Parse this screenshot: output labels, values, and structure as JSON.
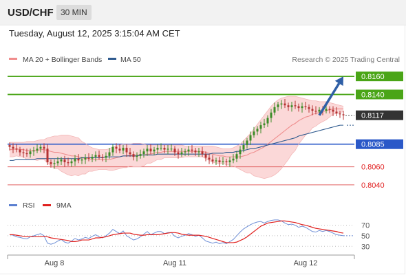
{
  "header": {
    "symbol": "USD/CHF",
    "timeframe": "30 MIN",
    "timestamp": "Tuesday, August 12, 2025 3:15:04 AM CET"
  },
  "legend": {
    "items": [
      {
        "label": "MA 20 + Bollinger Bands",
        "color": "#f08c8c"
      },
      {
        "label": "MA 50",
        "color": "#2e5a8e"
      }
    ],
    "source": "Research © 2025 Trading Central"
  },
  "rsi_legend": {
    "items": [
      {
        "label": "RSI",
        "color": "#5b7fd0"
      },
      {
        "label": "9MA",
        "color": "#e0201e"
      }
    ]
  },
  "colors": {
    "up": "#3c8c28",
    "down": "#b43232",
    "green_level": "#4aa517",
    "blue_level": "#2a58c8",
    "red_level": "#e06060",
    "bands": "#fbd8d8",
    "arrow": "#2f5fa6"
  },
  "chart_data": [
    {
      "type": "candlestick",
      "title": "USD/CHF",
      "ylim": [
        0.803,
        0.817
      ],
      "x_tick_labels": [
        {
          "label": "Aug 8",
          "index": 13
        },
        {
          "label": "Aug 11",
          "index": 48
        },
        {
          "label": "Aug 12",
          "index": 86
        }
      ],
      "last_price": 0.8117,
      "levels": [
        {
          "value": 0.816,
          "label": "0.8160",
          "kind": "resistance",
          "color": "#4aa517"
        },
        {
          "value": 0.814,
          "label": "0.8140",
          "kind": "resistance",
          "color": "#4aa517"
        },
        {
          "value": 0.8085,
          "label": "0.8085",
          "kind": "pivot",
          "color": "#2a58c8"
        },
        {
          "value": 0.806,
          "label": "0.8060",
          "kind": "support",
          "color": "#e06060"
        },
        {
          "value": 0.804,
          "label": "0.8040",
          "kind": "support",
          "color": "#e06060"
        }
      ],
      "target_arrow": {
        "from_index": 90,
        "from_value": 0.8117,
        "to_index": 97,
        "to_value": 0.816
      },
      "close": [
        0.8082,
        0.808,
        0.8079,
        0.8076,
        0.8075,
        0.8074,
        0.8077,
        0.8078,
        0.808,
        0.8082,
        0.808,
        0.8065,
        0.8063,
        0.8064,
        0.8066,
        0.8068,
        0.8065,
        0.8064,
        0.8066,
        0.8069,
        0.8067,
        0.8068,
        0.807,
        0.8069,
        0.8071,
        0.8073,
        0.8071,
        0.807,
        0.8072,
        0.8076,
        0.8082,
        0.808,
        0.8078,
        0.8081,
        0.8076,
        0.8074,
        0.8071,
        0.8072,
        0.8074,
        0.8077,
        0.808,
        0.8077,
        0.8079,
        0.8081,
        0.8081,
        0.8079,
        0.808,
        0.808,
        0.8076,
        0.8074,
        0.8076,
        0.8077,
        0.8079,
        0.8078,
        0.8076,
        0.8077,
        0.8074,
        0.807,
        0.8068,
        0.8066,
        0.8067,
        0.8065,
        0.8066,
        0.8065,
        0.8067,
        0.8069,
        0.8074,
        0.8079,
        0.8084,
        0.8089,
        0.8095,
        0.8099,
        0.8102,
        0.8106,
        0.8108,
        0.8114,
        0.812,
        0.8126,
        0.8129,
        0.813,
        0.8128,
        0.8126,
        0.8128,
        0.8127,
        0.8125,
        0.8127,
        0.8126,
        0.8124,
        0.8122,
        0.8121,
        0.8123,
        0.8122,
        0.8124,
        0.8123,
        0.8121,
        0.8119,
        0.8118,
        0.8117
      ],
      "ma20": [
        0.8079,
        0.8079,
        0.808,
        0.8079,
        0.8079,
        0.8078,
        0.8078,
        0.8078,
        0.8078,
        0.8079,
        0.8079,
        0.8078,
        0.8077,
        0.8076,
        0.8076,
        0.8075,
        0.8074,
        0.8073,
        0.8072,
        0.8072,
        0.8071,
        0.807,
        0.8069,
        0.8069,
        0.8068,
        0.8068,
        0.8068,
        0.8068,
        0.8068,
        0.8068,
        0.8069,
        0.807,
        0.8071,
        0.8072,
        0.8072,
        0.8073,
        0.8073,
        0.8073,
        0.8073,
        0.8073,
        0.8074,
        0.8074,
        0.8075,
        0.8076,
        0.8076,
        0.8077,
        0.8077,
        0.8077,
        0.8077,
        0.8077,
        0.8077,
        0.8077,
        0.8077,
        0.8077,
        0.8077,
        0.8077,
        0.8077,
        0.8076,
        0.8075,
        0.8074,
        0.8073,
        0.8072,
        0.8072,
        0.8071,
        0.8071,
        0.8071,
        0.8071,
        0.8071,
        0.8072,
        0.8073,
        0.8075,
        0.8076,
        0.8078,
        0.808,
        0.8082,
        0.8085,
        0.8088,
        0.8091,
        0.8094,
        0.8097,
        0.81,
        0.8103,
        0.8106,
        0.8108,
        0.8111,
        0.8113,
        0.8115,
        0.8116,
        0.8118,
        0.8119,
        0.812,
        0.8121,
        0.8122,
        0.8123,
        0.8124,
        0.8124,
        0.8124,
        0.8124
      ],
      "bb_upper": [
        0.8087,
        0.8087,
        0.8087,
        0.8087,
        0.8087,
        0.8088,
        0.8088,
        0.8088,
        0.8089,
        0.809,
        0.809,
        0.8092,
        0.8093,
        0.8094,
        0.8094,
        0.8095,
        0.8095,
        0.8095,
        0.8094,
        0.8093,
        0.8092,
        0.8088,
        0.8086,
        0.8083,
        0.8081,
        0.808,
        0.8079,
        0.8079,
        0.8079,
        0.808,
        0.8082,
        0.8083,
        0.8084,
        0.8085,
        0.8085,
        0.8085,
        0.8086,
        0.8086,
        0.8086,
        0.8085,
        0.8084,
        0.8084,
        0.8084,
        0.8084,
        0.8084,
        0.8084,
        0.8084,
        0.8084,
        0.8084,
        0.8084,
        0.8084,
        0.8083,
        0.8083,
        0.8083,
        0.8083,
        0.8083,
        0.8083,
        0.8083,
        0.8083,
        0.8083,
        0.8082,
        0.8081,
        0.808,
        0.808,
        0.808,
        0.8081,
        0.8083,
        0.8085,
        0.8089,
        0.8093,
        0.8097,
        0.8102,
        0.8107,
        0.8112,
        0.8117,
        0.8122,
        0.8127,
        0.8131,
        0.8134,
        0.8136,
        0.8137,
        0.8138,
        0.8138,
        0.8138,
        0.8137,
        0.8136,
        0.8135,
        0.8134,
        0.8133,
        0.8133,
        0.8132,
        0.8132,
        0.8132,
        0.8131,
        0.813,
        0.8129,
        0.8128,
        0.8127
      ],
      "bb_lower": [
        0.8071,
        0.8071,
        0.8072,
        0.8071,
        0.8071,
        0.8068,
        0.8068,
        0.8068,
        0.8067,
        0.8068,
        0.8068,
        0.8064,
        0.8061,
        0.8058,
        0.8058,
        0.8055,
        0.8053,
        0.8051,
        0.805,
        0.8051,
        0.805,
        0.8052,
        0.8052,
        0.8055,
        0.8055,
        0.8056,
        0.8057,
        0.8057,
        0.8057,
        0.8056,
        0.8056,
        0.8057,
        0.8058,
        0.8059,
        0.8059,
        0.8061,
        0.806,
        0.806,
        0.806,
        0.8061,
        0.8064,
        0.8064,
        0.8066,
        0.8068,
        0.8068,
        0.807,
        0.807,
        0.807,
        0.807,
        0.807,
        0.807,
        0.8071,
        0.8071,
        0.8071,
        0.8071,
        0.8071,
        0.8071,
        0.8069,
        0.8067,
        0.8065,
        0.8064,
        0.8063,
        0.8064,
        0.8062,
        0.8062,
        0.8061,
        0.8059,
        0.8057,
        0.8055,
        0.8053,
        0.8053,
        0.805,
        0.8049,
        0.8048,
        0.8047,
        0.8048,
        0.8049,
        0.8051,
        0.8054,
        0.8058,
        0.8063,
        0.8068,
        0.8074,
        0.8078,
        0.8085,
        0.809,
        0.8095,
        0.8098,
        0.8103,
        0.8105,
        0.8108,
        0.811,
        0.8112,
        0.8115,
        0.8118,
        0.8119,
        0.812,
        0.8121
      ],
      "ma50": [
        0.8067,
        0.8067,
        0.8068,
        0.8068,
        0.8068,
        0.8068,
        0.8068,
        0.8068,
        0.8069,
        0.8069,
        0.8069,
        0.8069,
        0.8069,
        0.8069,
        0.8069,
        0.8069,
        0.8069,
        0.8069,
        0.8069,
        0.8069,
        0.8069,
        0.807,
        0.807,
        0.807,
        0.807,
        0.807,
        0.807,
        0.807,
        0.8071,
        0.8071,
        0.8071,
        0.8071,
        0.8071,
        0.8072,
        0.8072,
        0.8072,
        0.8072,
        0.8072,
        0.8073,
        0.8073,
        0.8073,
        0.8073,
        0.8073,
        0.8074,
        0.8074,
        0.8074,
        0.8074,
        0.8074,
        0.8074,
        0.8074,
        0.8074,
        0.8074,
        0.8074,
        0.8074,
        0.8074,
        0.8074,
        0.8074,
        0.8074,
        0.8074,
        0.8075,
        0.8075,
        0.8075,
        0.8075,
        0.8076,
        0.8076,
        0.8076,
        0.8077,
        0.8077,
        0.8078,
        0.8079,
        0.808,
        0.808,
        0.8081,
        0.8082,
        0.8083,
        0.8084,
        0.8085,
        0.8086,
        0.8087,
        0.8088,
        0.8089,
        0.809,
        0.8091,
        0.8092,
        0.8094,
        0.8095,
        0.8096,
        0.8097,
        0.8098,
        0.8099,
        0.81,
        0.8101,
        0.8102,
        0.8103,
        0.8104,
        0.8105,
        0.8106,
        0.8106
      ]
    },
    {
      "type": "line",
      "series": [
        {
          "name": "RSI",
          "values": [
            52,
            51,
            48,
            47,
            45,
            44,
            48,
            50,
            52,
            54,
            50,
            36,
            34,
            36,
            40,
            43,
            38,
            36,
            40,
            45,
            42,
            44,
            47,
            45,
            49,
            52,
            48,
            46,
            50,
            55,
            62,
            58,
            54,
            59,
            50,
            46,
            42,
            44,
            48,
            53,
            58,
            52,
            55,
            58,
            58,
            54,
            56,
            56,
            49,
            46,
            49,
            51,
            54,
            52,
            49,
            51,
            46,
            40,
            38,
            36,
            38,
            35,
            37,
            35,
            39,
            43,
            50,
            57,
            63,
            67,
            71,
            74,
            76,
            77,
            74,
            77,
            79,
            80,
            80,
            78,
            74,
            71,
            72,
            70,
            66,
            68,
            66,
            62,
            58,
            57,
            60,
            58,
            60,
            58,
            55,
            52,
            51,
            50
          ]
        },
        {
          "name": "9MA",
          "values": [
            52,
            52,
            51,
            50,
            49,
            48,
            48,
            48,
            48,
            48,
            49,
            48,
            46,
            45,
            44,
            43,
            42,
            41,
            39,
            39,
            40,
            42,
            42,
            42,
            44,
            46,
            46,
            47,
            48,
            50,
            52,
            53,
            54,
            55,
            55,
            55,
            53,
            52,
            51,
            51,
            52,
            52,
            52,
            52,
            53,
            54,
            55,
            56,
            56,
            55,
            53,
            52,
            51,
            51,
            51,
            51,
            50,
            49,
            47,
            45,
            43,
            41,
            39,
            37,
            37,
            37,
            38,
            41,
            44,
            48,
            53,
            58,
            63,
            68,
            71,
            74,
            75,
            76,
            77,
            78,
            78,
            77,
            76,
            75,
            73,
            71,
            70,
            68,
            66,
            64,
            63,
            62,
            61,
            60,
            59,
            58,
            56,
            55
          ]
        }
      ],
      "ylim": [
        20,
        85
      ],
      "y_ticks": [
        70,
        50,
        30
      ]
    }
  ]
}
